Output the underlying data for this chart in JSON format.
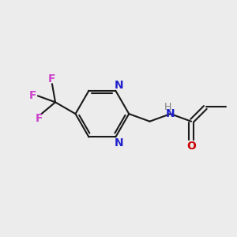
{
  "background_color": "#ececec",
  "bond_color": "#1a1a1a",
  "N_color": "#2020cc",
  "O_color": "#cc0000",
  "F_color": "#cc44cc",
  "H_color": "#808080",
  "line_width": 1.5,
  "figsize": [
    3.0,
    3.0
  ],
  "dpi": 100,
  "xlim": [
    0,
    10
  ],
  "ylim": [
    0,
    10
  ]
}
